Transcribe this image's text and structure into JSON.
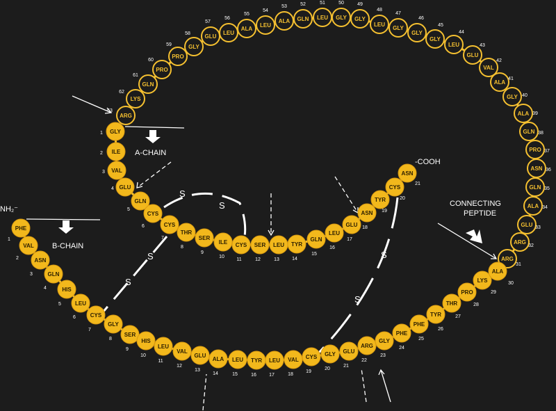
{
  "labels": {
    "a_chain": "A-CHAIN",
    "b_chain": "B-CHAIN",
    "connecting_peptide_line1": "CONNECTING",
    "connecting_peptide_line2": "PEPTIDE",
    "nh2": "NH₂⁻",
    "cooh": "-COOH",
    "disulfide": "S"
  },
  "colors": {
    "background": "#1c1c1c",
    "residue_fill": "#f2b81c",
    "residue_outline": "#f5c030",
    "label": "#ffffff"
  },
  "a_chain": [
    {
      "n": "1",
      "aa": "GLY"
    },
    {
      "n": "2",
      "aa": "ILE"
    },
    {
      "n": "3",
      "aa": "VAL"
    },
    {
      "n": "4",
      "aa": "GLU"
    },
    {
      "n": "5",
      "aa": "GLN"
    },
    {
      "n": "6",
      "aa": "CYS"
    },
    {
      "n": "7",
      "aa": "CYS"
    },
    {
      "n": "8",
      "aa": "THR"
    },
    {
      "n": "9",
      "aa": "SER"
    },
    {
      "n": "10",
      "aa": "ILE"
    },
    {
      "n": "11",
      "aa": "CYS"
    },
    {
      "n": "12",
      "aa": "SER"
    },
    {
      "n": "13",
      "aa": "LEU"
    },
    {
      "n": "14",
      "aa": "TYR"
    },
    {
      "n": "15",
      "aa": "GLN"
    },
    {
      "n": "16",
      "aa": "LEU"
    },
    {
      "n": "17",
      "aa": "GLU"
    },
    {
      "n": "18",
      "aa": "ASN"
    },
    {
      "n": "19",
      "aa": "TYR"
    },
    {
      "n": "20",
      "aa": "CYS"
    },
    {
      "n": "21",
      "aa": "ASN"
    }
  ],
  "b_chain": [
    {
      "n": "1",
      "aa": "PHE"
    },
    {
      "n": "2",
      "aa": "VAL"
    },
    {
      "n": "3",
      "aa": "ASN"
    },
    {
      "n": "4",
      "aa": "GLN"
    },
    {
      "n": "5",
      "aa": "HIS"
    },
    {
      "n": "6",
      "aa": "LEU"
    },
    {
      "n": "7",
      "aa": "CYS"
    },
    {
      "n": "8",
      "aa": "GLY"
    },
    {
      "n": "9",
      "aa": "SER"
    },
    {
      "n": "10",
      "aa": "HIS"
    },
    {
      "n": "11",
      "aa": "LEU"
    },
    {
      "n": "12",
      "aa": "VAL"
    },
    {
      "n": "13",
      "aa": "GLU"
    },
    {
      "n": "14",
      "aa": "ALA"
    },
    {
      "n": "15",
      "aa": "LEU"
    },
    {
      "n": "16",
      "aa": "TYR"
    },
    {
      "n": "17",
      "aa": "LEU"
    },
    {
      "n": "18",
      "aa": "VAL"
    },
    {
      "n": "19",
      "aa": "CYS"
    },
    {
      "n": "20",
      "aa": "GLY"
    },
    {
      "n": "21",
      "aa": "GLU"
    },
    {
      "n": "22",
      "aa": "ARG"
    },
    {
      "n": "23",
      "aa": "GLY"
    },
    {
      "n": "24",
      "aa": "PHE"
    },
    {
      "n": "25",
      "aa": "PHE"
    },
    {
      "n": "26",
      "aa": "TYR"
    },
    {
      "n": "27",
      "aa": "THR"
    },
    {
      "n": "28",
      "aa": "PRO"
    },
    {
      "n": "29",
      "aa": "LYS"
    },
    {
      "n": "30",
      "aa": "ALA"
    }
  ],
  "connecting_peptide": [
    {
      "n": "31",
      "aa": "ARG"
    },
    {
      "n": "32",
      "aa": "ARG"
    },
    {
      "n": "33",
      "aa": "GLU"
    },
    {
      "n": "34",
      "aa": "ALA"
    },
    {
      "n": "35",
      "aa": "GLN"
    },
    {
      "n": "36",
      "aa": "ASN"
    },
    {
      "n": "37",
      "aa": "PRO"
    },
    {
      "n": "38",
      "aa": "GLN"
    },
    {
      "n": "39",
      "aa": "ALA"
    },
    {
      "n": "40",
      "aa": "GLY"
    },
    {
      "n": "41",
      "aa": "ALA"
    },
    {
      "n": "42",
      "aa": "VAL"
    },
    {
      "n": "43",
      "aa": "GLU"
    },
    {
      "n": "44",
      "aa": "LEU"
    },
    {
      "n": "45",
      "aa": "GLY"
    },
    {
      "n": "46",
      "aa": "GLY"
    },
    {
      "n": "47",
      "aa": "GLY"
    },
    {
      "n": "48",
      "aa": "LEU"
    },
    {
      "n": "49",
      "aa": "GLY"
    },
    {
      "n": "50",
      "aa": "GLY"
    },
    {
      "n": "51",
      "aa": "LEU"
    },
    {
      "n": "52",
      "aa": "GLN"
    },
    {
      "n": "53",
      "aa": "ALA"
    },
    {
      "n": "54",
      "aa": "LEU"
    },
    {
      "n": "55",
      "aa": "ALA"
    },
    {
      "n": "56",
      "aa": "LEU"
    },
    {
      "n": "57",
      "aa": "GLU"
    },
    {
      "n": "58",
      "aa": "GLY"
    },
    {
      "n": "59",
      "aa": "PRO"
    },
    {
      "n": "60",
      "aa": "PRO"
    },
    {
      "n": "61",
      "aa": "GLN"
    },
    {
      "n": "62",
      "aa": "LYS"
    },
    {
      "n": "63",
      "aa": "ARG"
    }
  ]
}
